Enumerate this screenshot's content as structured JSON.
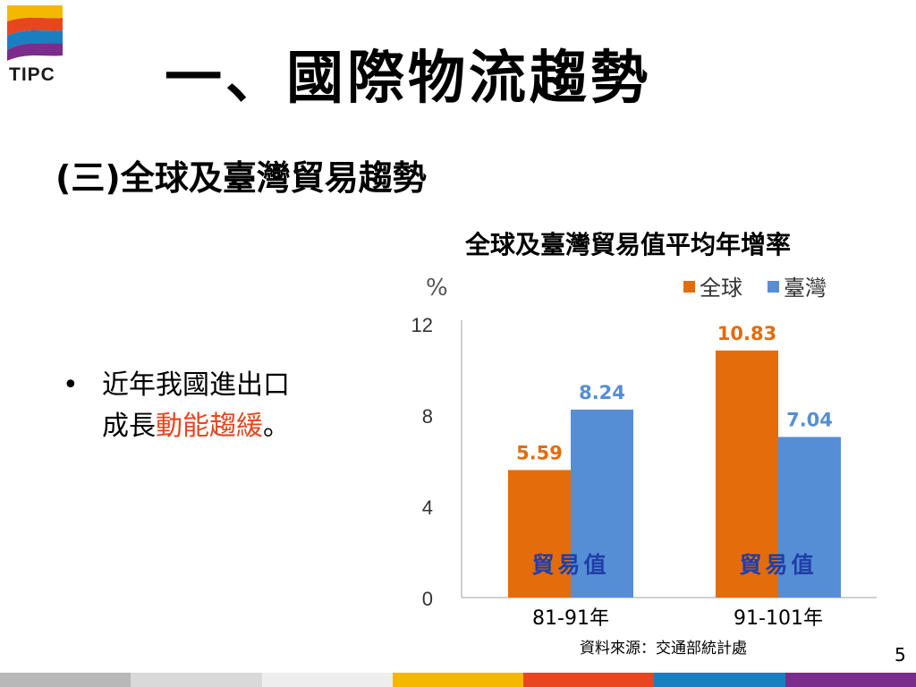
{
  "logo": {
    "text": "TIPC"
  },
  "slide": {
    "title": "一、國際物流趨勢",
    "subtitle": "(三)全球及臺灣貿易趨勢",
    "page_number": "5"
  },
  "bullet": {
    "marker": "•",
    "line1": "近年我國進出口",
    "line2_prefix": "成長",
    "line2_highlight": "動能趨緩",
    "line2_suffix": "。"
  },
  "chart_data": {
    "type": "bar",
    "title": "全球及臺灣貿易值平均年增率",
    "ylabel": "%",
    "xlabel": "",
    "ylim": [
      0,
      12
    ],
    "yticks": [
      0,
      4,
      8,
      12
    ],
    "categories": [
      "81-91年",
      "91-101年"
    ],
    "category_annotation": "貿易值",
    "series": [
      {
        "name": "全球",
        "values": [
          5.59,
          10.83
        ],
        "color": "#e46c0a"
      },
      {
        "name": "臺灣",
        "values": [
          8.24,
          7.04
        ],
        "color": "#558ed5"
      }
    ],
    "data_labels": [
      [
        "5.59",
        "10.83"
      ],
      [
        "8.24",
        "7.04"
      ]
    ],
    "label_colors": [
      "#e46c0a",
      "#558ed5"
    ],
    "annotation_color": "#1f3fa8",
    "legend_position": "top-right",
    "grid": false
  },
  "source": "資料來源：交通部統計處",
  "colors": {
    "stripe": [
      "#b8b8b8",
      "#d9d9d9",
      "#eeeeee",
      "#f5b800",
      "#e8461e",
      "#1a7fc1",
      "#7a2d8a"
    ]
  }
}
